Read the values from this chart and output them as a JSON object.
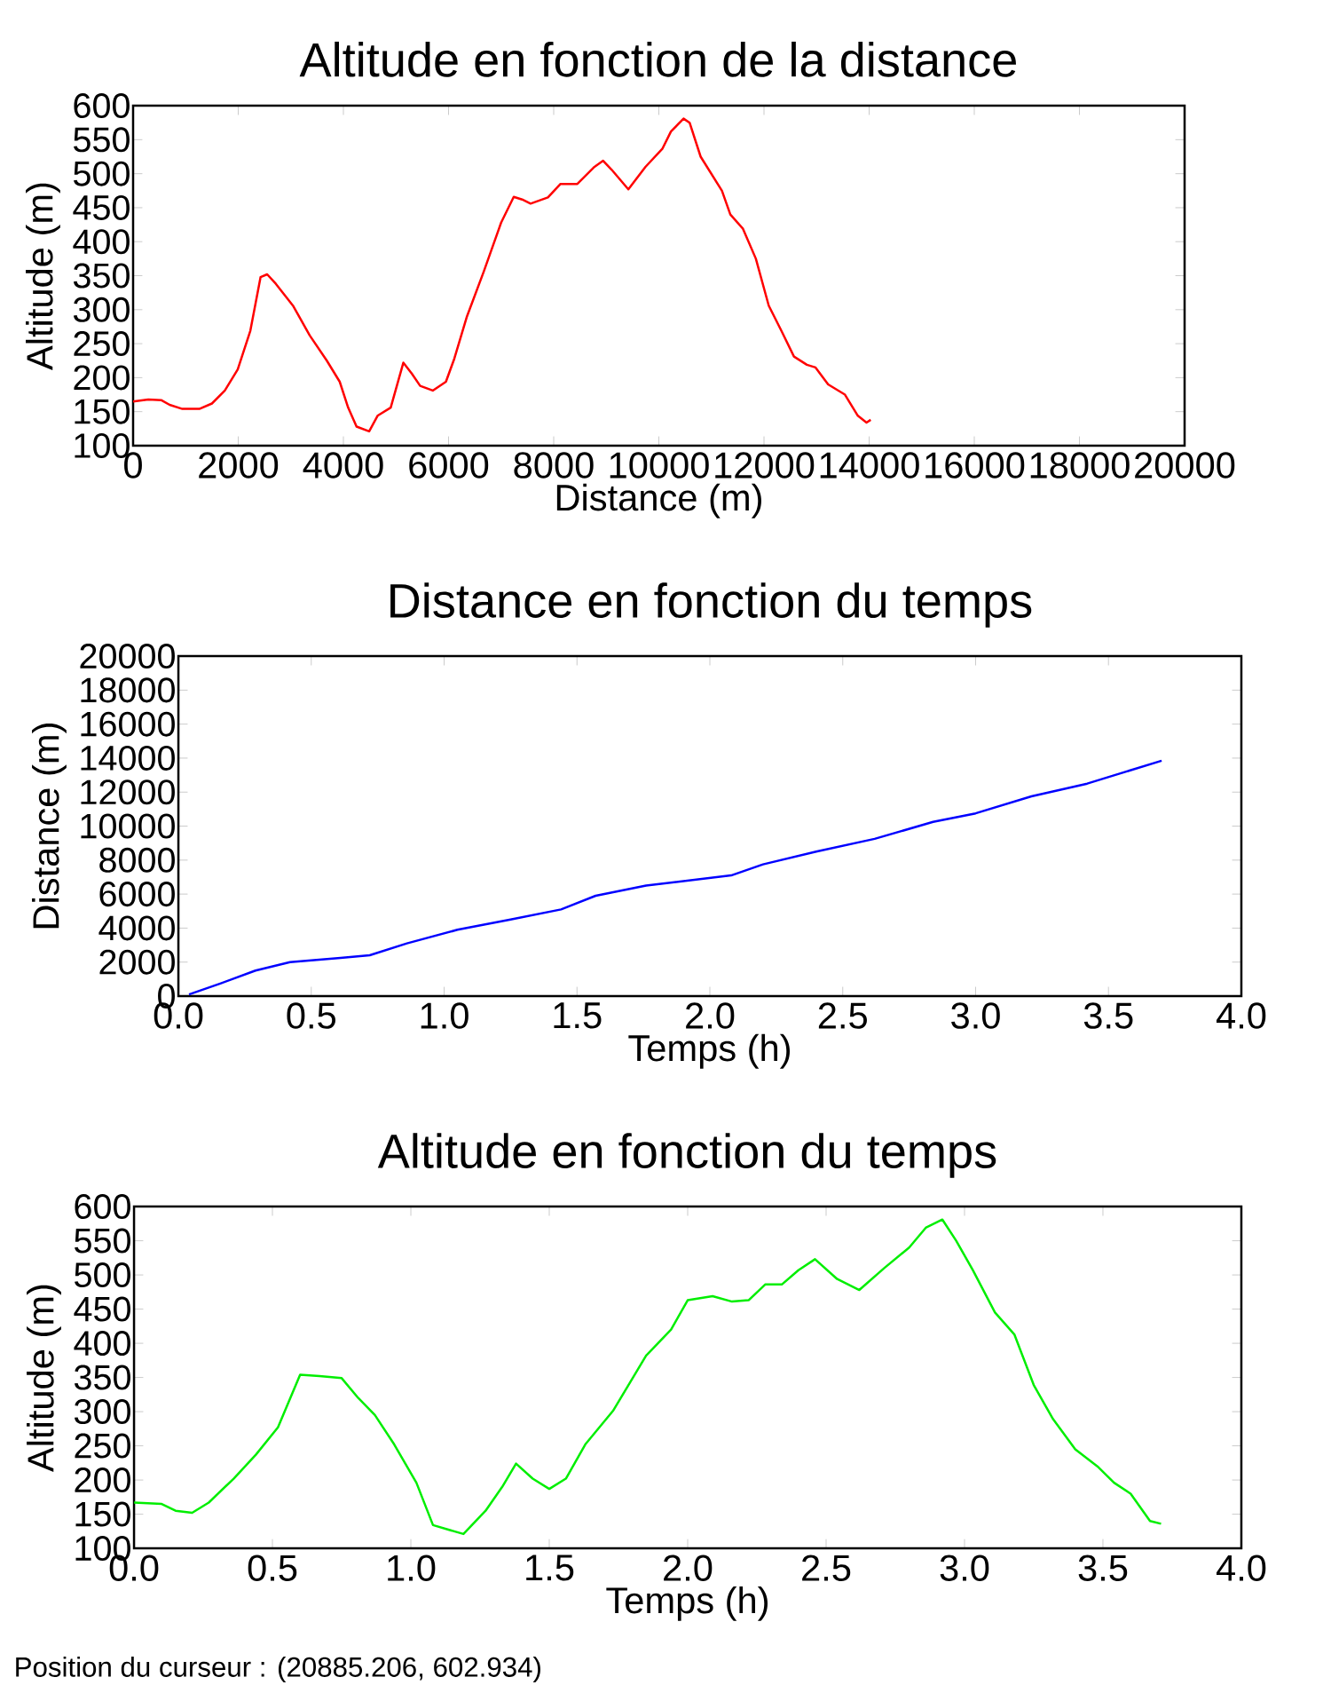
{
  "chart_data": [
    {
      "type": "line",
      "title": "Altitude en fonction de la distance",
      "xlabel": "Distance (m)",
      "ylabel": "Altitude (m)",
      "color": "#ff0000",
      "xlim": [
        0,
        20000
      ],
      "ylim": [
        100,
        600
      ],
      "xticks": [
        0,
        2000,
        4000,
        6000,
        8000,
        10000,
        12000,
        14000,
        16000,
        18000,
        20000
      ],
      "yticks": [
        100,
        150,
        200,
        250,
        300,
        350,
        400,
        450,
        500,
        550,
        600
      ],
      "x": [
        0,
        290,
        533,
        695,
        937,
        1260,
        1500,
        1745,
        1990,
        2230,
        2425,
        2550,
        2715,
        3040,
        3360,
        3685,
        3930,
        4090,
        4250,
        4490,
        4650,
        4900,
        5140,
        5300,
        5460,
        5700,
        5950,
        6110,
        6350,
        6670,
        7000,
        7240,
        7400,
        7560,
        7890,
        8130,
        8450,
        8775,
        8940,
        9100,
        9420,
        9745,
        10070,
        10230,
        10470,
        10585,
        10795,
        11200,
        11360,
        11600,
        11845,
        12090,
        12330,
        12570,
        12815,
        12980,
        13220,
        13540,
        13785,
        13950,
        14030
      ],
      "values": [
        165,
        168,
        167,
        160,
        154,
        154,
        162,
        181,
        212,
        269,
        348,
        352,
        338,
        306,
        262,
        225,
        194,
        156,
        128,
        121,
        144,
        156,
        222,
        206,
        188,
        181,
        194,
        228,
        290,
        356,
        428,
        466,
        462,
        456,
        465,
        485,
        485,
        510,
        519,
        506,
        477,
        510,
        537,
        562,
        581,
        575,
        525,
        475,
        440,
        419,
        375,
        306,
        269,
        231,
        219,
        215,
        190,
        175,
        144,
        134,
        138
      ]
    },
    {
      "type": "line",
      "title": "Distance en fonction du temps",
      "xlabel": "Temps (h)",
      "ylabel": "Distance (m)",
      "color": "#0000ff",
      "xlim": [
        0,
        4
      ],
      "ylim": [
        0,
        20000
      ],
      "xticks": [
        {
          "value": 0,
          "label": "0.0"
        },
        {
          "value": 0.5,
          "label": "0.5"
        },
        {
          "value": 1,
          "label": "1.0"
        },
        {
          "value": 1.5,
          "label": "1.5"
        },
        {
          "value": 2,
          "label": "2.0"
        },
        {
          "value": 2.5,
          "label": "2.5"
        },
        {
          "value": 3,
          "label": "3.0"
        },
        {
          "value": 3.5,
          "label": "3.5"
        },
        {
          "value": 4,
          "label": "4.0"
        }
      ],
      "yticks": [
        0,
        2000,
        4000,
        6000,
        8000,
        10000,
        12000,
        14000,
        16000,
        18000,
        20000
      ],
      "x": [
        0.04,
        0.16,
        0.29,
        0.42,
        0.61,
        0.72,
        0.86,
        1.05,
        1.25,
        1.44,
        1.57,
        1.76,
        2.08,
        2.2,
        2.4,
        2.62,
        2.84,
        3.0,
        3.21,
        3.42,
        3.7
      ],
      "values": [
        100,
        750,
        1500,
        2000,
        2250,
        2400,
        3100,
        3900,
        4500,
        5100,
        5900,
        6500,
        7100,
        7750,
        8500,
        9250,
        10250,
        10750,
        11750,
        12500,
        13850
      ]
    },
    {
      "type": "line",
      "title": "Altitude en fonction du temps",
      "xlabel": "Temps (h)",
      "ylabel": "Altitude (m)",
      "color": "#00ee00",
      "xlim": [
        0,
        4
      ],
      "ylim": [
        100,
        600
      ],
      "xticks": [
        {
          "value": 0,
          "label": "0.0"
        },
        {
          "value": 0.5,
          "label": "0.5"
        },
        {
          "value": 1,
          "label": "1.0"
        },
        {
          "value": 1.5,
          "label": "1.5"
        },
        {
          "value": 2,
          "label": "2.0"
        },
        {
          "value": 2.5,
          "label": "2.5"
        },
        {
          "value": 3,
          "label": "3.0"
        },
        {
          "value": 3.5,
          "label": "3.5"
        },
        {
          "value": 4,
          "label": "4.0"
        }
      ],
      "yticks": [
        100,
        150,
        200,
        250,
        300,
        350,
        400,
        450,
        500,
        550,
        600
      ],
      "annotations": [
        "Position du curseur : (20885.206, 602.934)"
      ],
      "x": [
        0,
        0.1,
        0.15,
        0.21,
        0.27,
        0.36,
        0.44,
        0.52,
        0.6,
        0.67,
        0.75,
        0.81,
        0.87,
        0.94,
        1.02,
        1.08,
        1.19,
        1.27,
        1.33,
        1.38,
        1.44,
        1.5,
        1.56,
        1.63,
        1.73,
        1.85,
        1.94,
        2.0,
        2.09,
        2.16,
        2.22,
        2.28,
        2.34,
        2.4,
        2.46,
        2.54,
        2.62,
        2.71,
        2.8,
        2.86,
        2.92,
        2.97,
        3.03,
        3.11,
        3.18,
        3.25,
        3.32,
        3.4,
        3.48,
        3.54,
        3.6,
        3.67,
        3.71
      ],
      "values": [
        167,
        165,
        155,
        152,
        167,
        202,
        237,
        277,
        354,
        352,
        349,
        320,
        295,
        252,
        196,
        134,
        121,
        155,
        190,
        224,
        202,
        187,
        202,
        252,
        301,
        382,
        420,
        463,
        469,
        461,
        463,
        486,
        486,
        507,
        523,
        494,
        478,
        510,
        540,
        569,
        581,
        550,
        507,
        445,
        413,
        339,
        289,
        245,
        220,
        196,
        180,
        140,
        136
      ]
    }
  ]
}
